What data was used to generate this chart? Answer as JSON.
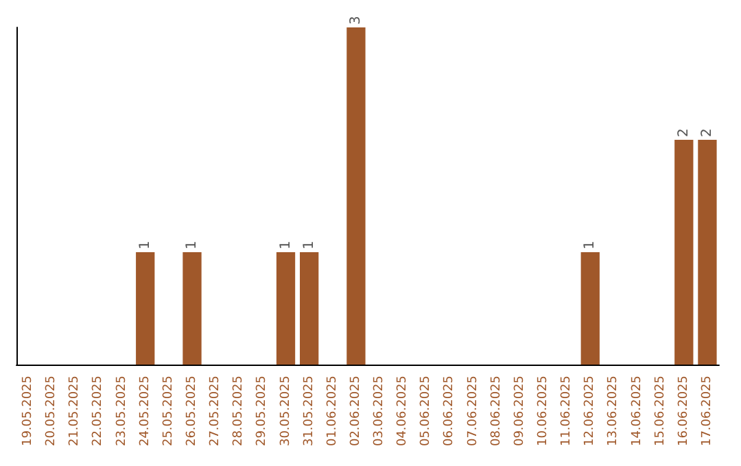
{
  "chart_data": {
    "type": "bar",
    "categories": [
      "19.05.2025",
      "20.05.2025",
      "21.05.2025",
      "22.05.2025",
      "23.05.2025",
      "24.05.2025",
      "25.05.2025",
      "26.05.2025",
      "27.05.2025",
      "28.05.2025",
      "29.05.2025",
      "30.05.2025",
      "31.05.2025",
      "01.06.2025",
      "02.06.2025",
      "03.06.2025",
      "04.06.2025",
      "05.06.2025",
      "06.06.2025",
      "07.06.2025",
      "08.06.2025",
      "09.06.2025",
      "10.06.2025",
      "11.06.2025",
      "12.06.2025",
      "13.06.2025",
      "14.06.2025",
      "15.06.2025",
      "16.06.2025",
      "17.06.2025"
    ],
    "values": [
      0,
      0,
      0,
      0,
      0,
      1,
      0,
      1,
      0,
      0,
      0,
      1,
      1,
      0,
      3,
      0,
      0,
      0,
      0,
      0,
      0,
      0,
      0,
      0,
      1,
      0,
      0,
      0,
      2,
      2
    ],
    "value_labels": [
      null,
      null,
      null,
      null,
      null,
      "1",
      null,
      "1",
      null,
      null,
      null,
      "1",
      "1",
      null,
      "3",
      null,
      null,
      null,
      null,
      null,
      null,
      null,
      null,
      null,
      "1",
      null,
      null,
      null,
      "2",
      "2"
    ],
    "color": "#a0582a"
  }
}
